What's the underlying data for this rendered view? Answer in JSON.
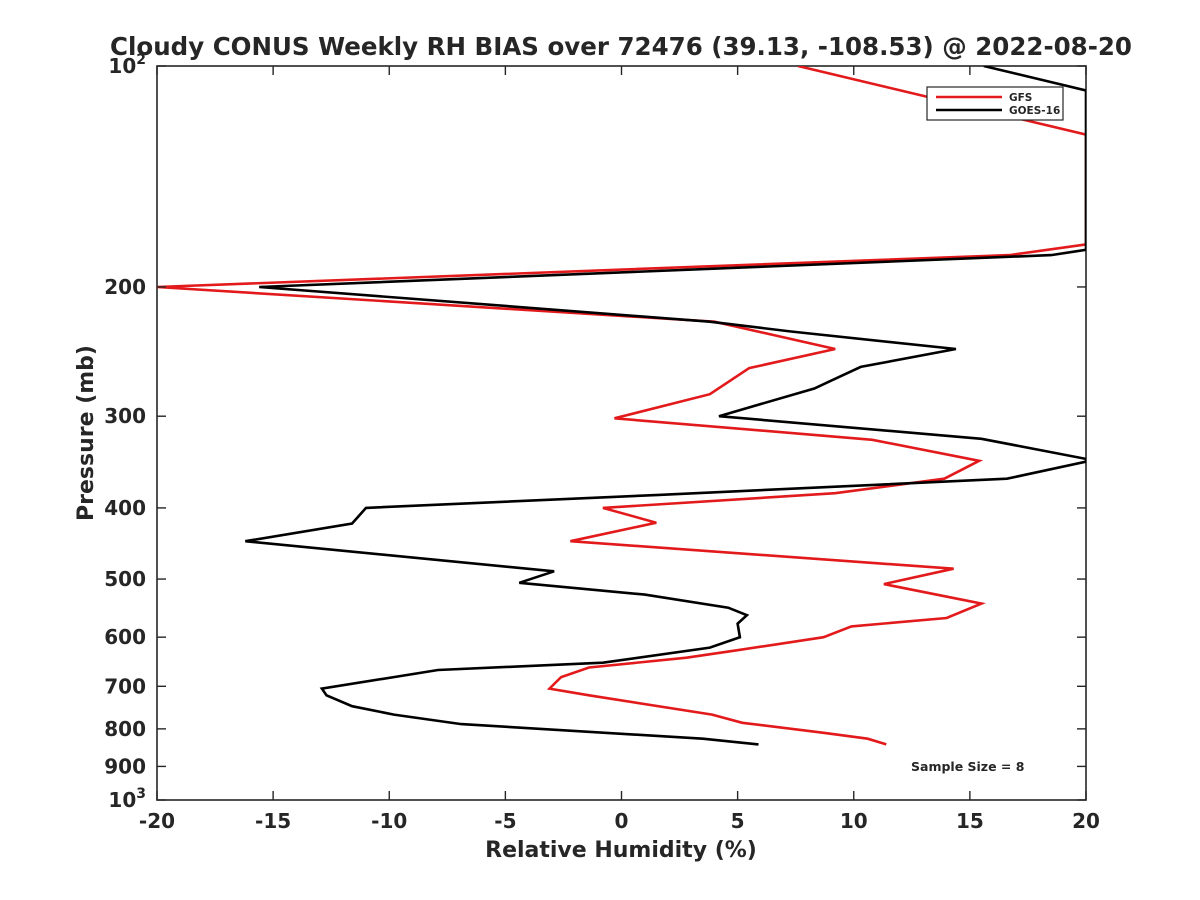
{
  "chart_data": {
    "type": "line",
    "title": "Cloudy CONUS Weekly RH BIAS over 72476 (39.13, -108.53) @ 2022-08-20",
    "xlabel": "Relative Humidity (%)",
    "ylabel": "Pressure (mb)",
    "xlim": [
      -20,
      20
    ],
    "ylim": [
      100,
      1000
    ],
    "yscale": "log",
    "y_reversed": true,
    "grid": false,
    "legend_position": "top-right",
    "annotation": "Sample Size = 8",
    "x_ticks": [
      -20,
      -15,
      -10,
      -5,
      0,
      5,
      10,
      15,
      20
    ],
    "y_ticks": [
      {
        "value": 100,
        "label": "10",
        "sup": "2"
      },
      {
        "value": 200,
        "label": "200"
      },
      {
        "value": 300,
        "label": "300"
      },
      {
        "value": 400,
        "label": "400"
      },
      {
        "value": 500,
        "label": "500"
      },
      {
        "value": 600,
        "label": "600"
      },
      {
        "value": 700,
        "label": "700"
      },
      {
        "value": 800,
        "label": "800"
      },
      {
        "value": 900,
        "label": "900"
      },
      {
        "value": 1000,
        "label": "10",
        "sup": "3"
      }
    ],
    "series": [
      {
        "name": "GFS",
        "color": "#e31a1c",
        "points": [
          [
            7.6,
            100
          ],
          [
            20,
            124
          ],
          [
            20,
            175
          ],
          [
            16.7,
            181
          ],
          [
            -20,
            200
          ],
          [
            4.0,
            223
          ],
          [
            9.2,
            243
          ],
          [
            5.5,
            258
          ],
          [
            3.8,
            280
          ],
          [
            -0.3,
            302
          ],
          [
            10.8,
            323
          ],
          [
            15.4,
            345
          ],
          [
            13.9,
            365
          ],
          [
            9.2,
            382
          ],
          [
            -0.8,
            400
          ],
          [
            1.5,
            419
          ],
          [
            -2.2,
            444
          ],
          [
            14.3,
            484
          ],
          [
            11.3,
            508
          ],
          [
            15.5,
            540
          ],
          [
            14.0,
            565
          ],
          [
            9.9,
            580
          ],
          [
            8.7,
            600
          ],
          [
            5.0,
            625
          ],
          [
            2.8,
            640
          ],
          [
            -1.4,
            660
          ],
          [
            -2.6,
            680
          ],
          [
            -3.1,
            705
          ],
          [
            -1.4,
            720
          ],
          [
            3.9,
            765
          ],
          [
            5.2,
            785
          ],
          [
            8.7,
            810
          ],
          [
            10.6,
            825
          ],
          [
            11.4,
            840
          ]
        ]
      },
      {
        "name": "GOES-16",
        "color": "#000000",
        "points": [
          [
            15.6,
            100
          ],
          [
            20,
            108
          ],
          [
            20,
            178
          ],
          [
            18.5,
            181
          ],
          [
            -15.6,
            200
          ],
          [
            3.8,
            223
          ],
          [
            7.3,
            230
          ],
          [
            14.4,
            243
          ],
          [
            10.3,
            257
          ],
          [
            8.3,
            275
          ],
          [
            4.2,
            300
          ],
          [
            15.5,
            322
          ],
          [
            20,
            343
          ],
          [
            20,
            346
          ],
          [
            16.6,
            365
          ],
          [
            1.6,
            384
          ],
          [
            -11.0,
            400
          ],
          [
            -11.6,
            420
          ],
          [
            -16.2,
            444
          ],
          [
            -2.9,
            488
          ],
          [
            -4.4,
            506
          ],
          [
            1.0,
            525
          ],
          [
            4.6,
            547
          ],
          [
            5.4,
            560
          ],
          [
            5.0,
            575
          ],
          [
            5.1,
            600
          ],
          [
            3.8,
            620
          ],
          [
            -0.8,
            650
          ],
          [
            -7.9,
            665
          ],
          [
            -12.9,
            705
          ],
          [
            -12.7,
            720
          ],
          [
            -11.6,
            745
          ],
          [
            -9.8,
            765
          ],
          [
            -6.9,
            788
          ],
          [
            3.5,
            825
          ],
          [
            5.9,
            840
          ]
        ]
      }
    ]
  }
}
